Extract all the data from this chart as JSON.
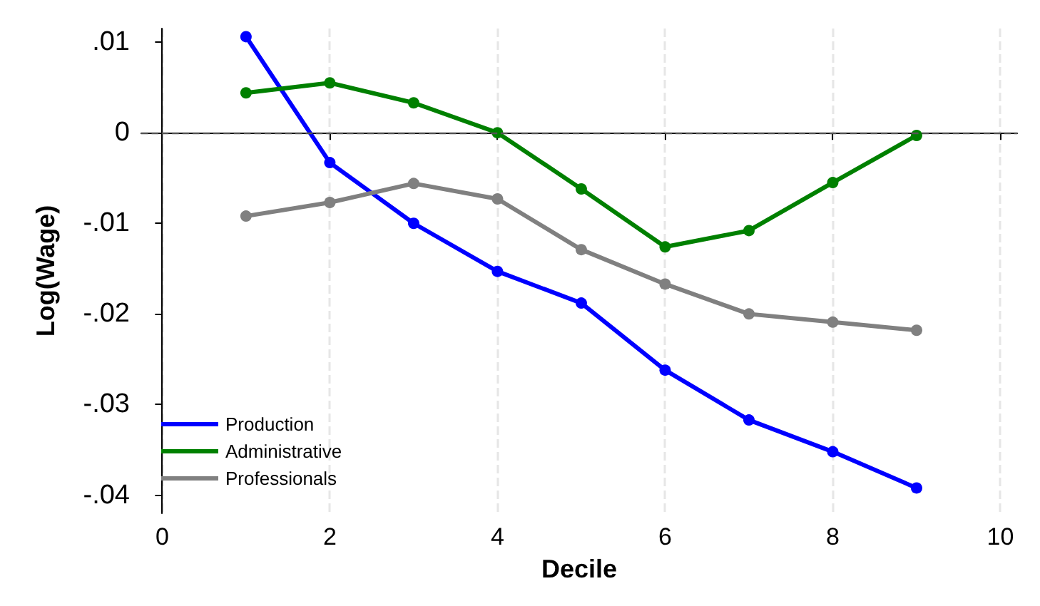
{
  "chart_data": {
    "type": "line",
    "xlabel": "Decile",
    "ylabel": "Log(Wage)",
    "x": [
      1,
      2,
      3,
      4,
      5,
      6,
      7,
      8,
      9
    ],
    "series": [
      {
        "name": "Production",
        "color": "#0000ff",
        "values": [
          0.0106,
          -0.0033,
          -0.01,
          -0.0153,
          -0.0188,
          -0.0262,
          -0.0317,
          -0.0352,
          -0.0392
        ]
      },
      {
        "name": "Administrative",
        "color": "#008000",
        "values": [
          0.0044,
          0.0055,
          0.0033,
          0.0,
          -0.0062,
          -0.0126,
          -0.0108,
          -0.0055,
          -0.0003
        ]
      },
      {
        "name": "Professionals",
        "color": "#808080",
        "values": [
          -0.0092,
          -0.0077,
          -0.0056,
          -0.0073,
          -0.0129,
          -0.0167,
          -0.02,
          -0.0209,
          -0.0218
        ]
      }
    ],
    "xlim": [
      -0.25,
      10.2
    ],
    "xticks": [
      0,
      2,
      4,
      6,
      8,
      10
    ],
    "ylim": [
      -0.042,
      0.0115
    ],
    "yticks": [
      {
        "value": -0.04,
        "label": "-.04"
      },
      {
        "value": -0.03,
        "label": "-.03"
      },
      {
        "value": -0.02,
        "label": "-.02"
      },
      {
        "value": -0.01,
        "label": "-.01"
      },
      0,
      {
        "value": 0.01,
        "label": ".01"
      }
    ],
    "ref_lines": [
      {
        "axis": "y",
        "value": 0,
        "color": "#555555",
        "line_style": "dashed"
      }
    ],
    "grid": "x",
    "legend": "bottom left",
    "marker": "circle",
    "line_style": "solid"
  }
}
